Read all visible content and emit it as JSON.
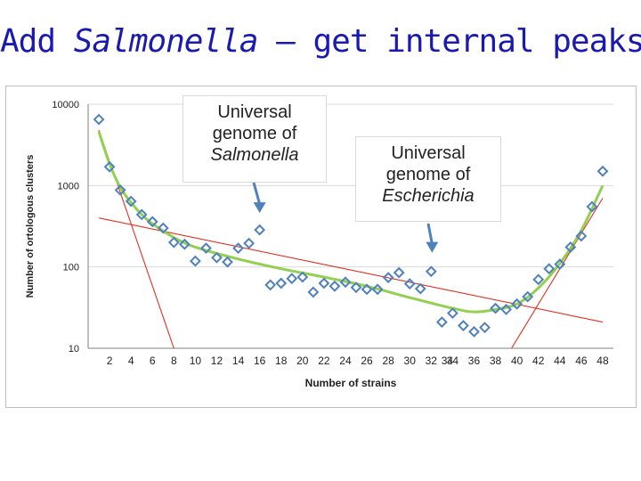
{
  "slide": {
    "title_prefix": "Add ",
    "title_italic": "Salmonella",
    "title_suffix": " – get internal peaks"
  },
  "callouts": [
    {
      "line1": "Universal",
      "line2": "genome of",
      "line3": "Salmonella"
    },
    {
      "line1": "Universal",
      "line2": "genome of",
      "line3": "Escherichia"
    }
  ],
  "chart_data": {
    "type": "scatter",
    "xlabel": "Number of strains",
    "ylabel": "Number of ortologous clusters",
    "y_scale": "log",
    "ylim": [
      10,
      10000
    ],
    "xlim": [
      0,
      49
    ],
    "y_ticks": [
      "10",
      "100",
      "1000",
      "10000"
    ],
    "x_ticks": [
      "2",
      "4",
      "6",
      "8",
      "10",
      "12",
      "14",
      "16",
      "18",
      "20",
      "22",
      "24",
      "26",
      "28",
      "30",
      "32",
      "34",
      "34",
      "36",
      "38",
      "40",
      "42",
      "44",
      "46",
      "48"
    ],
    "x_tick_values": [
      2,
      4,
      6,
      8,
      10,
      12,
      14,
      16,
      18,
      20,
      22,
      24,
      26,
      28,
      30,
      32,
      33.5,
      34,
      36,
      38,
      40,
      42,
      44,
      46,
      48
    ],
    "grid": "horizontal",
    "marker_color": "#4f81bd",
    "fit_color": "#92d050",
    "trend_color": "#e03020",
    "series": [
      {
        "x": [
          1,
          2,
          3,
          4,
          5,
          6,
          7,
          8,
          9,
          10,
          11,
          12,
          13,
          14,
          15,
          16,
          17,
          18,
          19,
          20,
          21,
          22,
          23,
          24,
          25,
          26,
          27,
          28,
          29,
          30,
          31,
          32,
          33,
          34,
          35,
          36,
          37,
          38,
          39,
          40,
          41,
          42,
          43,
          44,
          45,
          46,
          47,
          48
        ],
        "values": [
          6500,
          1700,
          880,
          640,
          440,
          360,
          300,
          200,
          190,
          118,
          170,
          130,
          115,
          170,
          195,
          285,
          60,
          63,
          72,
          75,
          49,
          63,
          58,
          65,
          56,
          53,
          53,
          74,
          85,
          62,
          54,
          88,
          21,
          27,
          19,
          16,
          18,
          31,
          30,
          35,
          43,
          70,
          95,
          108,
          175,
          240,
          550,
          1500
        ]
      }
    ],
    "fit_curve": {
      "x": [
        1,
        2,
        3,
        4,
        5,
        6,
        8,
        10,
        14,
        18,
        22,
        26,
        30,
        34,
        36,
        38,
        40,
        42,
        44,
        46,
        48
      ],
      "values": [
        4600,
        1850,
        950,
        620,
        440,
        340,
        230,
        175,
        125,
        95,
        75,
        58,
        42,
        31,
        28,
        30,
        35,
        55,
        110,
        280,
        1000
      ]
    },
    "trend_lines": [
      {
        "x": [
          1,
          8
        ],
        "values": [
          4800,
          10
        ]
      },
      {
        "x": [
          1,
          48
        ],
        "values": [
          400,
          21
        ]
      },
      {
        "x": [
          39.5,
          48
        ],
        "values": [
          10,
          700
        ]
      }
    ],
    "arrow_targets": [
      {
        "x": 16,
        "value": 460
      },
      {
        "x": 32,
        "value": 150
      }
    ]
  }
}
